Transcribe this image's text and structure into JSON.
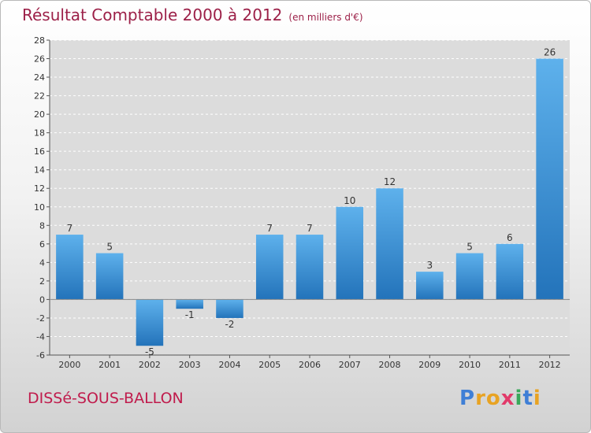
{
  "header": {
    "title": "Résultat Comptable 2000 à 2012",
    "unit": "(en milliers d'€)"
  },
  "footer": {
    "commune": "DISSé-SOUS-BALLON",
    "logo_letters": [
      {
        "char": "P",
        "color": "#3f7fd6"
      },
      {
        "char": "r",
        "color": "#e8a323"
      },
      {
        "char": "o",
        "color": "#e8a323"
      },
      {
        "char": "x",
        "color": "#e23a6a"
      },
      {
        "char": "i",
        "color": "#3aa85a"
      },
      {
        "char": "t",
        "color": "#3f7fd6"
      },
      {
        "char": "i",
        "color": "#e8a323"
      }
    ]
  },
  "chart_data": {
    "type": "bar",
    "categories": [
      "2000",
      "2001",
      "2002",
      "2003",
      "2004",
      "2005",
      "2006",
      "2007",
      "2008",
      "2009",
      "2010",
      "2011",
      "2012"
    ],
    "values": [
      7,
      5,
      -5,
      -1,
      -2,
      7,
      7,
      10,
      12,
      3,
      5,
      6,
      26
    ],
    "data_labels": [
      "7",
      "5",
      "-5",
      "-1",
      "-2",
      "7",
      "7",
      "10",
      "12",
      "3",
      "5",
      "6",
      "26"
    ],
    "title": "Résultat Comptable 2000 à 2012",
    "ylim": [
      -6,
      28
    ],
    "yticks": [
      -6,
      -4,
      -2,
      0,
      2,
      4,
      6,
      8,
      10,
      12,
      14,
      16,
      18,
      20,
      22,
      24,
      26,
      28
    ],
    "grid": true,
    "bar_color": "#3a8fd9"
  }
}
